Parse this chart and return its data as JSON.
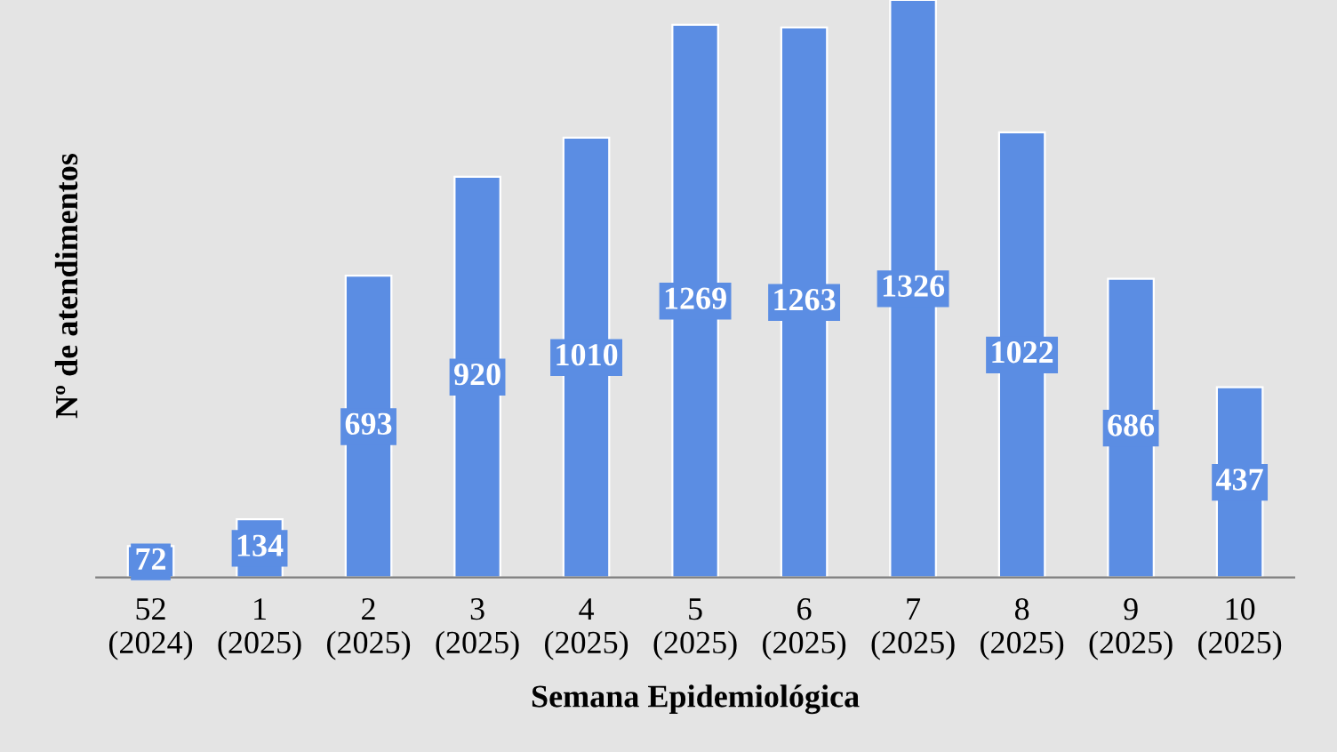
{
  "chart_data": {
    "type": "bar",
    "xlabel": "Semana Epidemiológica",
    "ylabel": "Nº de atendimentos",
    "categories": [
      "52\n(2024)",
      "1\n(2025)",
      "2\n(2025)",
      "3\n(2025)",
      "4\n(2025)",
      "5\n(2025)",
      "6\n(2025)",
      "7\n(2025)",
      "8\n(2025)",
      "9\n(2025)",
      "10\n(2025)"
    ],
    "values": [
      72,
      134,
      693,
      920,
      1010,
      1269,
      1263,
      1326,
      1022,
      686,
      437
    ],
    "color": "#5b8de3",
    "data_labels": true,
    "grid": false,
    "legend": false
  }
}
